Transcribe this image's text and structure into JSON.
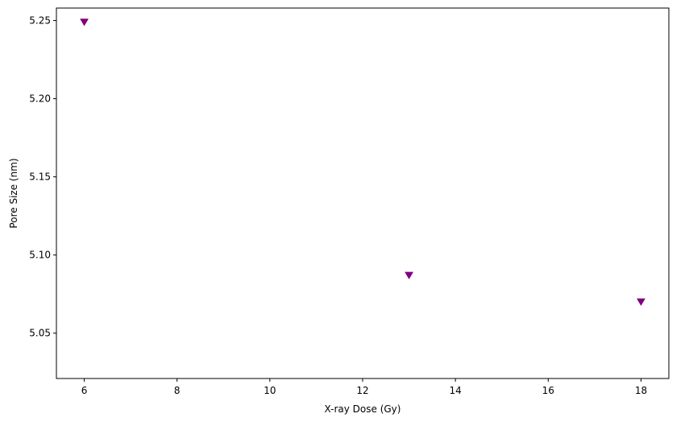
{
  "chart_data": {
    "type": "scatter",
    "title": "",
    "xlabel": "X-ray Dose (Gy)",
    "ylabel": "Pore Size (nm)",
    "xlim": [
      5.4,
      18.6
    ],
    "ylim": [
      5.021,
      5.258
    ],
    "xticks": [
      6,
      8,
      10,
      12,
      14,
      16,
      18
    ],
    "xtick_labels": [
      "6",
      "8",
      "10",
      "12",
      "14",
      "16",
      "18"
    ],
    "yticks": [
      5.05,
      5.1,
      5.15,
      5.2,
      5.25
    ],
    "ytick_labels": [
      "5.05",
      "5.10",
      "5.15",
      "5.20",
      "5.25"
    ],
    "grid": false,
    "series": [
      {
        "marker": "triangle-down",
        "color": "#800080",
        "x": [
          6,
          13,
          18
        ],
        "y": [
          5.249,
          5.087,
          5.07
        ]
      }
    ]
  }
}
